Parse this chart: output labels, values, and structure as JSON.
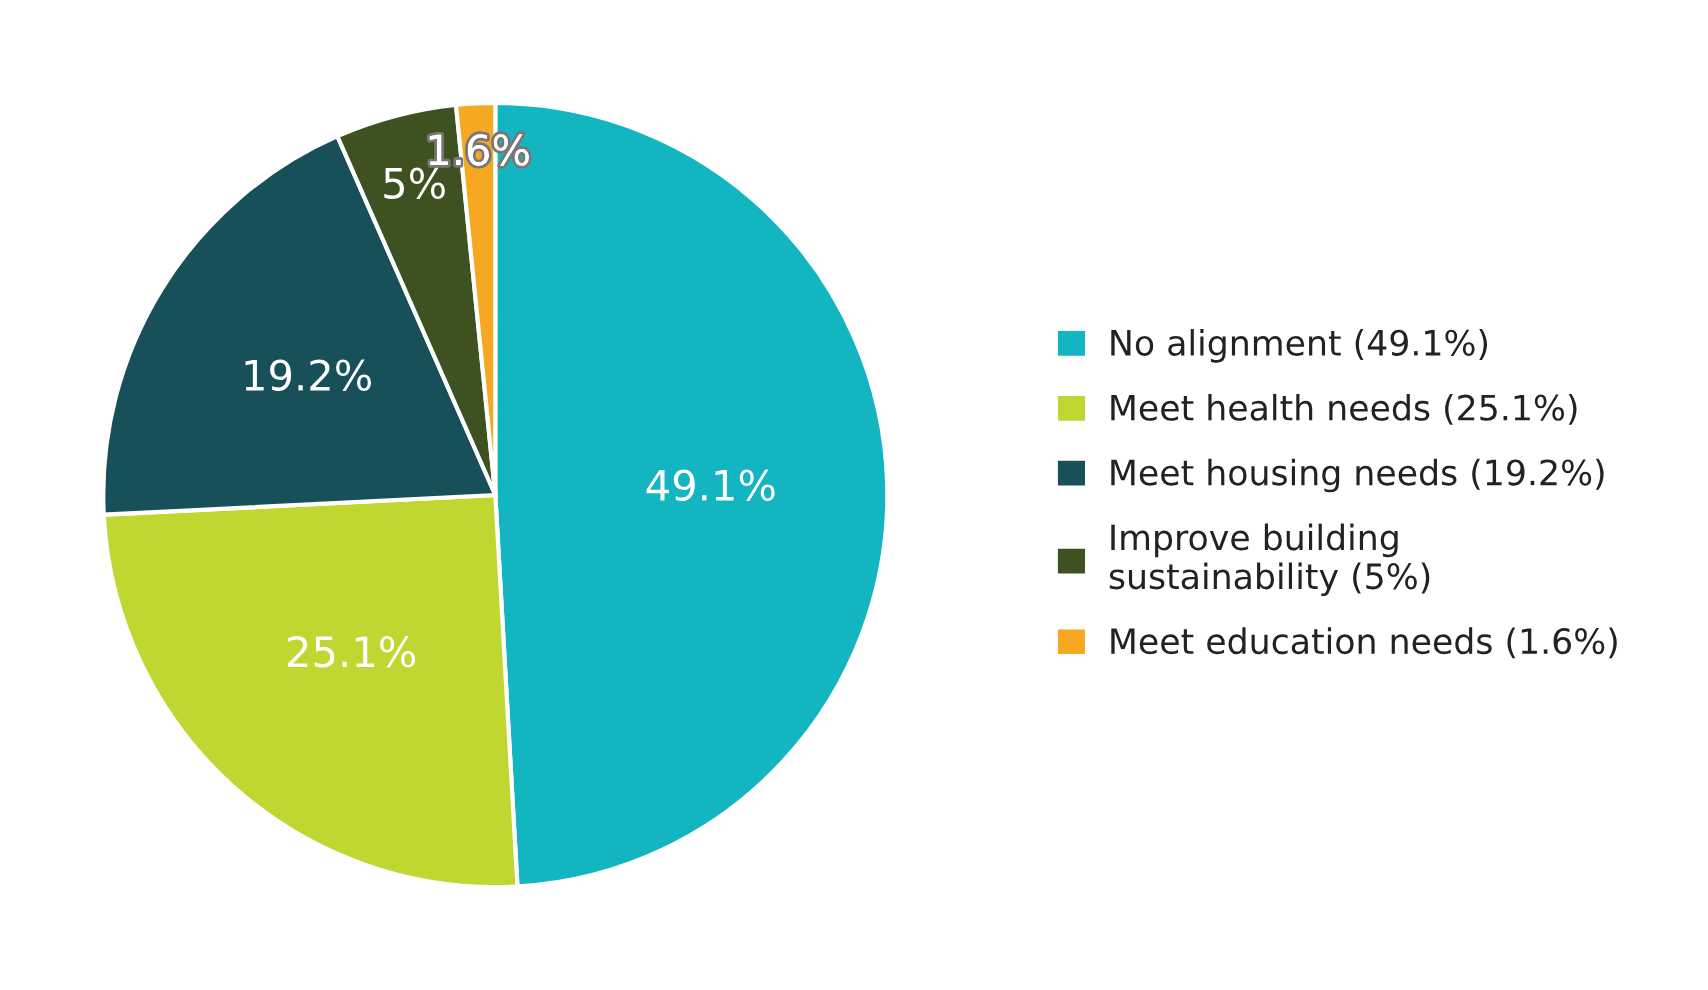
{
  "chart_data": {
    "type": "pie",
    "categories": [
      "No alignment (49.1%)",
      "Meet health needs (25.1%)",
      "Meet housing needs (19.2%)",
      "Improve building\nsustainability (5%)",
      "Meet education needs (1.6%)"
    ],
    "values": [
      49.1,
      25.1,
      19.2,
      5,
      1.6
    ],
    "colors": [
      "#12b5c0",
      "#c0d631",
      "#18505a",
      "#3e5221",
      "#f7a823"
    ],
    "value_labels": [
      "49.1%",
      "25.1%",
      "19.2%",
      "5%",
      "1.6%"
    ],
    "legend": "right"
  }
}
